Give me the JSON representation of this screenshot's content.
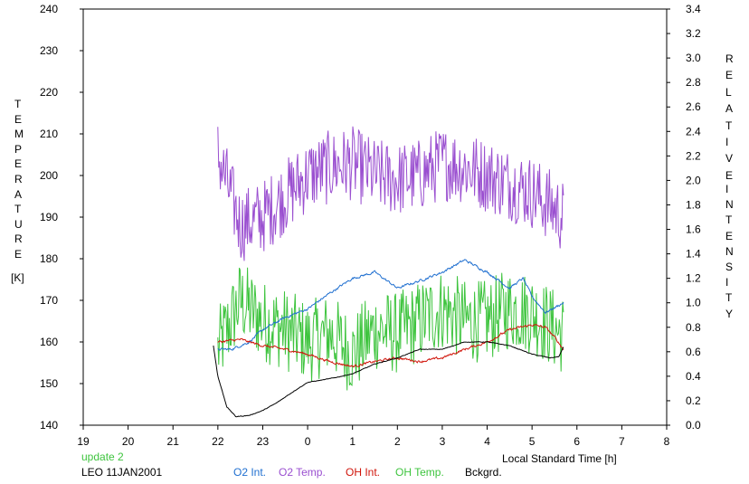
{
  "chart_data": {
    "type": "line",
    "left_axis": {
      "label_letters": [
        "T",
        "E",
        "M",
        "P",
        "E",
        "R",
        "A",
        "T",
        "U",
        "R",
        "E"
      ],
      "unit": "[K]",
      "range": [
        140,
        240
      ],
      "ticks": [
        140,
        150,
        160,
        170,
        180,
        190,
        200,
        210,
        220,
        230,
        240
      ]
    },
    "right_axis": {
      "label_letters_1": [
        "R",
        "E",
        "L",
        "A",
        "T",
        "I",
        "V",
        "E"
      ],
      "label_letters_2": [
        "I",
        "N",
        "T",
        "E",
        "N",
        "S",
        "I",
        "T",
        "Y"
      ],
      "range": [
        0.0,
        3.4
      ],
      "ticks": [
        "0.0",
        "0.2",
        "0.4",
        "0.6",
        "0.8",
        "1.0",
        "1.2",
        "1.4",
        "1.6",
        "1.8",
        "2.0",
        "2.2",
        "2.4",
        "2.6",
        "2.8",
        "3.0",
        "3.2",
        "3.4"
      ]
    },
    "x_axis": {
      "label": "Local Standard Time [h]",
      "range": [
        19,
        32
      ],
      "ticks": [
        "19",
        "20",
        "21",
        "22",
        "23",
        "0",
        "1",
        "2",
        "3",
        "4",
        "5",
        "6",
        "7",
        "8"
      ]
    },
    "grid": false,
    "legend": [
      {
        "name": "O2 Int.",
        "color": "#1f6fd0"
      },
      {
        "name": "O2 Temp.",
        "color": "#9a4fd0"
      },
      {
        "name": "OH Int.",
        "color": "#d0140a"
      },
      {
        "name": "OH Temp.",
        "color": "#3ec43e"
      },
      {
        "name": "Bckgrd.",
        "color": "#000000"
      }
    ],
    "series": [
      {
        "name": "O2 Temp.",
        "axis": "left",
        "color": "#9a4fd0",
        "x": [
          22.0,
          22.5,
          23.0,
          23.5,
          24.0,
          24.5,
          25.0,
          25.5,
          26.0,
          26.5,
          27.0,
          27.5,
          28.0,
          28.5,
          29.0,
          29.5,
          29.7
        ],
        "mean": [
          205,
          188,
          190,
          195,
          200,
          202,
          203,
          200,
          199,
          200,
          203,
          202,
          200,
          198,
          196,
          192,
          190
        ],
        "noise": 9
      },
      {
        "name": "OH Temp.",
        "axis": "left",
        "color": "#3ec43e",
        "x": [
          22.0,
          22.5,
          23.0,
          23.5,
          24.0,
          24.5,
          25.0,
          25.5,
          26.0,
          26.5,
          27.0,
          27.5,
          28.0,
          28.5,
          29.0,
          29.5,
          29.7
        ],
        "mean": [
          158,
          170,
          165,
          163,
          160,
          162,
          157,
          163,
          162,
          165,
          168,
          165,
          165,
          168,
          167,
          163,
          162
        ],
        "noise": 10
      },
      {
        "name": "O2 Int.",
        "axis": "right",
        "color": "#1f6fd0",
        "x": [
          22.0,
          22.3,
          22.7,
          23.0,
          23.5,
          24.0,
          24.5,
          25.0,
          25.5,
          26.0,
          26.5,
          27.0,
          27.5,
          28.0,
          28.5,
          28.8,
          29.0,
          29.3,
          29.7
        ],
        "mean": [
          0.62,
          0.62,
          0.68,
          0.78,
          0.88,
          0.95,
          1.08,
          1.2,
          1.25,
          1.12,
          1.18,
          1.25,
          1.35,
          1.25,
          1.12,
          1.2,
          1.05,
          0.92,
          1.0
        ],
        "noise": 0.02
      },
      {
        "name": "OH Int.",
        "axis": "right",
        "color": "#d0140a",
        "x": [
          22.0,
          22.5,
          23.0,
          23.5,
          24.0,
          24.5,
          25.0,
          25.5,
          26.0,
          26.5,
          27.0,
          27.5,
          28.0,
          28.5,
          29.0,
          29.3,
          29.5,
          29.7
        ],
        "mean": [
          0.68,
          0.7,
          0.65,
          0.62,
          0.58,
          0.52,
          0.48,
          0.52,
          0.55,
          0.52,
          0.55,
          0.62,
          0.68,
          0.78,
          0.82,
          0.8,
          0.72,
          0.62
        ],
        "noise": 0.02
      },
      {
        "name": "Bckgrd.",
        "axis": "right",
        "color": "#000000",
        "x": [
          21.9,
          22.0,
          22.2,
          22.4,
          22.7,
          23.0,
          23.3,
          23.7,
          24.0,
          24.5,
          25.0,
          25.5,
          26.0,
          26.5,
          27.0,
          27.5,
          28.0,
          28.5,
          29.0,
          29.4,
          29.6,
          29.7
        ],
        "mean": [
          0.65,
          0.4,
          0.15,
          0.07,
          0.08,
          0.12,
          0.18,
          0.28,
          0.35,
          0.38,
          0.42,
          0.5,
          0.55,
          0.62,
          0.62,
          0.68,
          0.68,
          0.65,
          0.58,
          0.55,
          0.56,
          0.64
        ],
        "noise": 0.005
      }
    ]
  },
  "captions": {
    "update": "update 2",
    "station": "LEO 11JAN2001"
  },
  "colors": {
    "update": "#3ec43e"
  }
}
